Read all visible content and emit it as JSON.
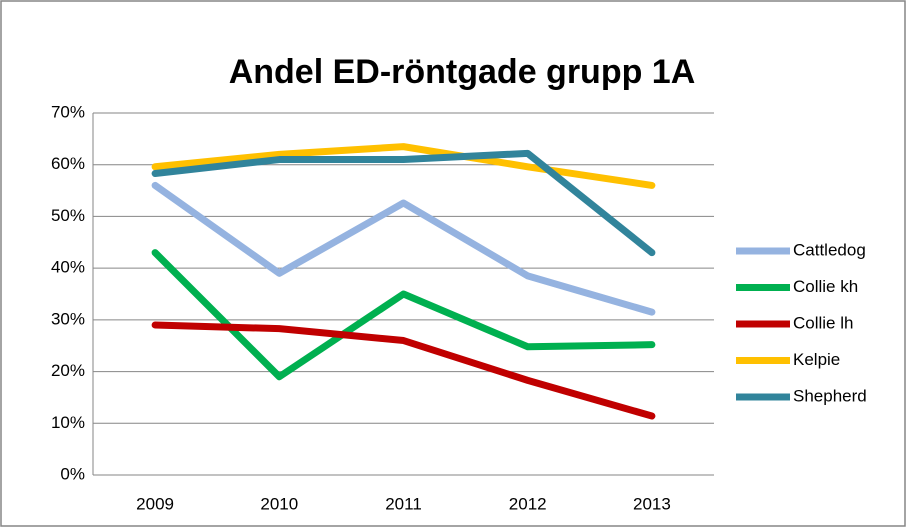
{
  "chart_data": {
    "type": "line",
    "title": "Andel ED-röntgade grupp 1A",
    "categories": [
      "2009",
      "2010",
      "2011",
      "2012",
      "2013"
    ],
    "series": [
      {
        "name": "Cattledog",
        "color": "#95b3e0",
        "values": [
          56,
          39,
          52.6,
          38.5,
          31.5
        ]
      },
      {
        "name": "Collie kh",
        "color": "#00b050",
        "values": [
          43,
          19,
          35,
          24.8,
          25.2
        ]
      },
      {
        "name": "Collie lh",
        "color": "#c00000",
        "values": [
          29,
          28.3,
          26,
          18.3,
          11.4
        ]
      },
      {
        "name": "Kelpie",
        "color": "#ffc000",
        "values": [
          59.6,
          62,
          63.5,
          59.6,
          56
        ]
      },
      {
        "name": "Shepherd",
        "color": "#31849b",
        "values": [
          58.3,
          61,
          61,
          62.2,
          43
        ]
      }
    ],
    "ylim": [
      0,
      70
    ],
    "yticks": [
      {
        "value": 0,
        "label": "0%"
      },
      {
        "value": 10,
        "label": "10%"
      },
      {
        "value": 20,
        "label": "20%"
      },
      {
        "value": 30,
        "label": "30%"
      },
      {
        "value": 40,
        "label": "40%"
      },
      {
        "value": 50,
        "label": "50%"
      },
      {
        "value": 60,
        "label": "60%"
      },
      {
        "value": 70,
        "label": "70%"
      }
    ],
    "grid": true,
    "legend": "right"
  }
}
